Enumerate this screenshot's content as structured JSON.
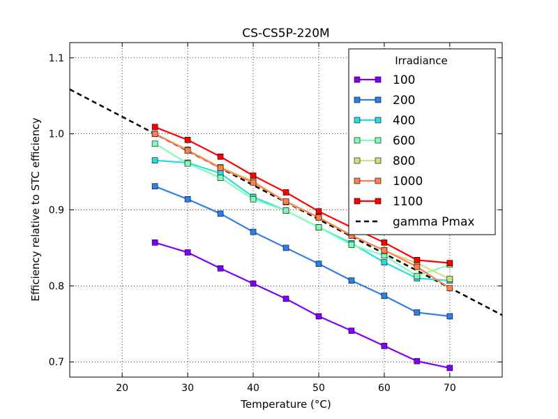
{
  "chart_data": {
    "type": "line",
    "title": "CS-CS5P-220M",
    "xlabel": "Temperature (°C)",
    "ylabel": "Efficiency relative to STC efficiency",
    "xlim": [
      12,
      78
    ],
    "ylim": [
      0.68,
      1.12
    ],
    "xticks": [
      20,
      30,
      40,
      50,
      60,
      70
    ],
    "yticks": [
      0.7,
      0.8,
      0.9,
      1.0,
      1.1
    ],
    "xtick_labels": [
      "20",
      "30",
      "40",
      "50",
      "60",
      "70"
    ],
    "ytick_labels": [
      "0.7",
      "0.8",
      "0.9",
      "1.0",
      "1.1"
    ],
    "grid": true,
    "legend": {
      "title": "Irradiance",
      "placement": "top-right"
    },
    "x": [
      25,
      30,
      35,
      40,
      45,
      50,
      55,
      60,
      65,
      70
    ],
    "series": [
      {
        "name": "100",
        "color": "#8000ff",
        "marker_fill": "#8000ff",
        "values": [
          0.857,
          0.844,
          0.823,
          0.803,
          0.783,
          0.76,
          0.741,
          0.721,
          0.701,
          0.692
        ]
      },
      {
        "name": "200",
        "color": "#2c7fe8",
        "marker_fill": "#2c7fe8",
        "values": [
          0.931,
          0.914,
          0.895,
          0.871,
          0.85,
          0.829,
          0.807,
          0.787,
          0.765,
          0.76
        ]
      },
      {
        "name": "400",
        "color": "#2adddd",
        "marker_fill": "#2adddd",
        "values": [
          0.965,
          0.962,
          0.948,
          0.917,
          0.899,
          0.877,
          0.856,
          0.831,
          0.81,
          0.807
        ]
      },
      {
        "name": "600",
        "color": "#80ffb4",
        "marker_fill": "#80ffb4",
        "values": [
          0.987,
          0.961,
          0.942,
          0.914,
          0.899,
          0.877,
          0.854,
          0.84,
          0.813,
          0.828
        ]
      },
      {
        "name": "800",
        "color": "#d4dd80",
        "marker_fill": "#d4dd80",
        "values": [
          1.0,
          0.979,
          0.956,
          0.938,
          0.91,
          0.89,
          0.867,
          0.846,
          0.83,
          0.809
        ]
      },
      {
        "name": "1000",
        "color": "#ff7f4e",
        "marker_fill": "#ff7f4e",
        "values": [
          1.0,
          0.978,
          0.955,
          0.936,
          0.911,
          0.89,
          0.866,
          0.847,
          0.825,
          0.797
        ]
      },
      {
        "name": "1100",
        "color": "#ff0000",
        "marker_fill": "#ff0000",
        "values": [
          1.009,
          0.992,
          0.97,
          0.945,
          0.923,
          0.898,
          0.877,
          0.857,
          0.834,
          0.83
        ]
      }
    ],
    "reference_line": {
      "name": "gamma Pmax",
      "color": "#000000",
      "style": "dashed",
      "points": [
        [
          12,
          1.0585
        ],
        [
          78,
          0.7615
        ]
      ]
    }
  }
}
